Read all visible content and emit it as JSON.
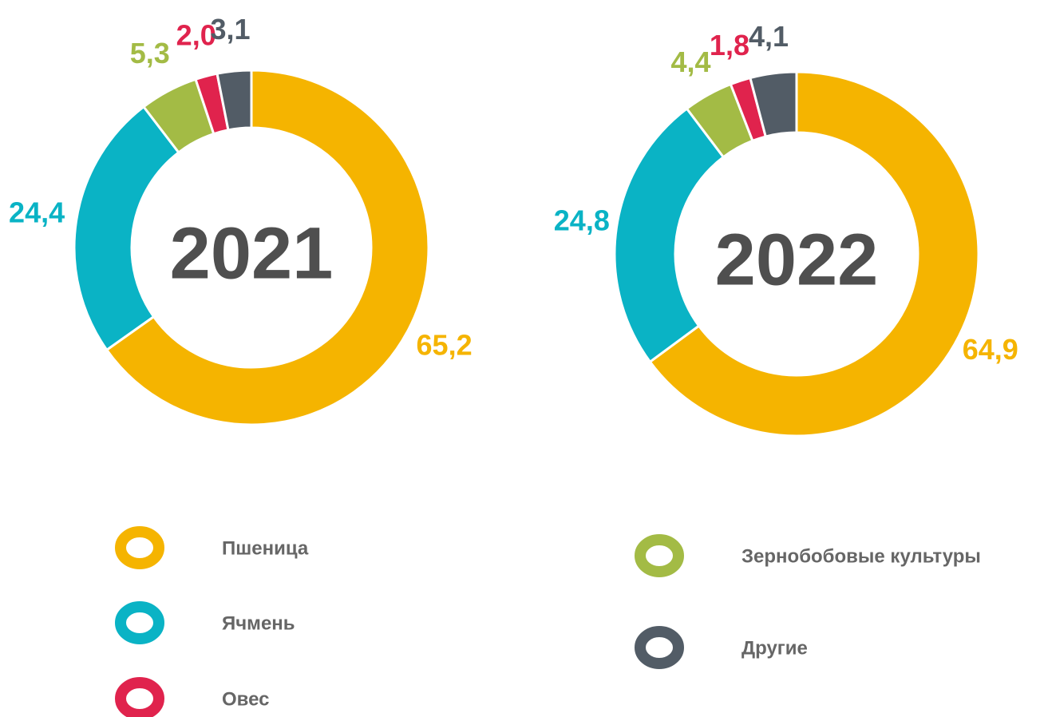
{
  "chart_data": [
    {
      "type": "donut",
      "title": "2021",
      "categories": [
        "Пшеница",
        "Ячмень",
        "Зернобобовые культуры",
        "Овес",
        "Другие"
      ],
      "values": [
        65.2,
        24.4,
        5.3,
        2.0,
        3.1
      ],
      "value_labels": [
        "65,2",
        "24,4",
        "5,3",
        "2,0",
        "3,1"
      ],
      "colors": [
        "#f5b400",
        "#0ab3c5",
        "#a3bb45",
        "#e0234d",
        "#525c66"
      ]
    },
    {
      "type": "donut",
      "title": "2022",
      "categories": [
        "Пшеница",
        "Ячмень",
        "Зернобобовые культуры",
        "Овес",
        "Другие"
      ],
      "values": [
        64.9,
        24.8,
        4.4,
        1.8,
        4.1
      ],
      "value_labels": [
        "64,9",
        "24,8",
        "4,4",
        "1,8",
        "4,1"
      ],
      "colors": [
        "#f5b400",
        "#0ab3c5",
        "#a3bb45",
        "#e0234d",
        "#525c66"
      ]
    }
  ]
}
